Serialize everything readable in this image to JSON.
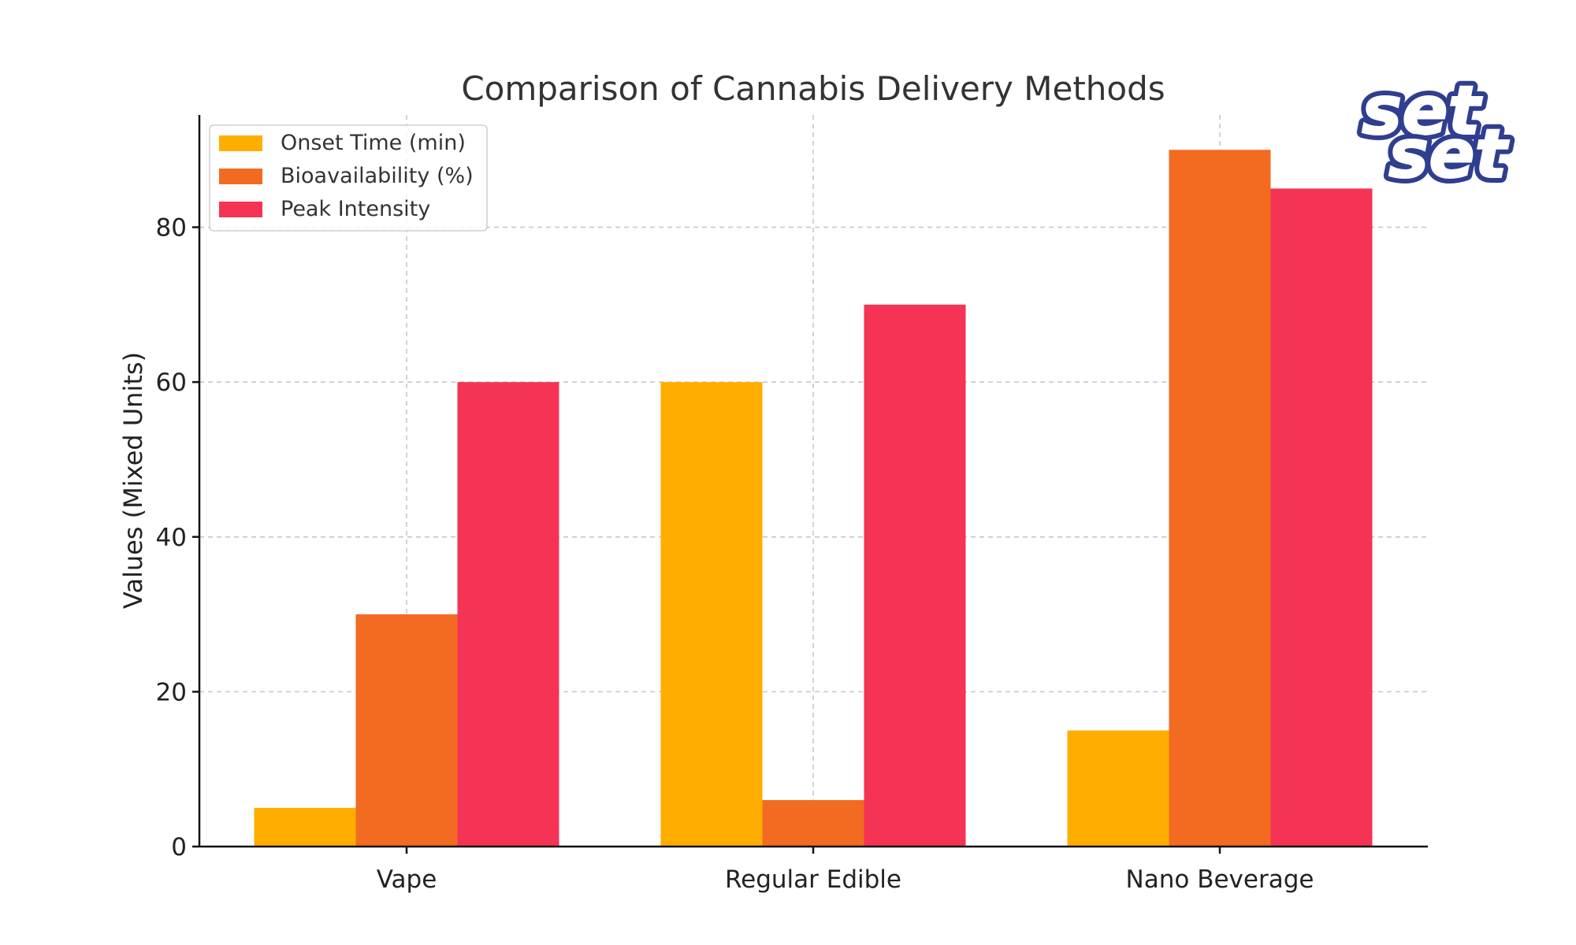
{
  "chart_data": {
    "type": "bar",
    "title": "Comparison of Cannabis Delivery Methods",
    "xlabel": "",
    "ylabel": "Values (Mixed Units)",
    "categories": [
      "Vape",
      "Regular Edible",
      "Nano Beverage"
    ],
    "series": [
      {
        "name": "Onset Time (min)",
        "color": "#FFAE00",
        "values": [
          5,
          60,
          15
        ]
      },
      {
        "name": "Bioavailability (%)",
        "color": "#F26B21",
        "values": [
          30,
          6,
          90
        ]
      },
      {
        "name": "Peak Intensity",
        "color": "#F53355",
        "values": [
          60,
          70,
          85
        ]
      }
    ],
    "ylim": [
      0,
      94.5
    ],
    "yticks": [
      0,
      20,
      40,
      60,
      80
    ],
    "grid": true,
    "legend_position": "top-left"
  },
  "logo": {
    "text_line1": "set",
    "text_line2": "set",
    "color": "#2F3E8F"
  }
}
